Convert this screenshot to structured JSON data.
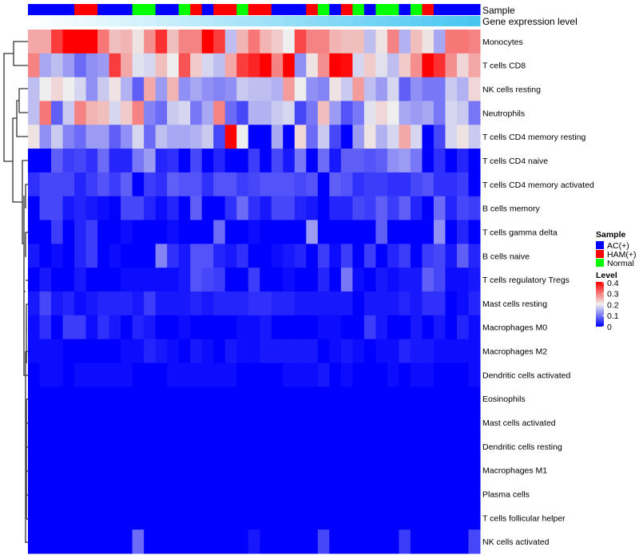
{
  "chart_data": {
    "type": "heatmap",
    "title": "",
    "annotations": {
      "sample_label": "Sample",
      "gene_label": "Gene expression level",
      "sample": [
        "AC(+)",
        "AC(+)",
        "AC(+)",
        "AC(+)",
        "HAM(+)",
        "HAM(+)",
        "AC(+)",
        "AC(+)",
        "AC(+)",
        "Normal",
        "Normal",
        "AC(+)",
        "AC(+)",
        "Normal",
        "HAM(+)",
        "AC(+)",
        "HAM(+)",
        "HAM(+)",
        "Normal",
        "HAM(+)",
        "HAM(+)",
        "AC(+)",
        "AC(+)",
        "AC(+)",
        "HAM(+)",
        "Normal",
        "AC(+)",
        "HAM(+)",
        "Normal",
        "AC(+)",
        "Normal",
        "Normal",
        "AC(+)",
        "Normal",
        "HAM(+)",
        "AC(+)",
        "AC(+)",
        "AC(+)",
        "AC(+)"
      ],
      "gene_expression_rank": [
        0,
        1,
        2,
        3,
        4,
        5,
        6,
        7,
        8,
        9,
        10,
        11,
        12,
        13,
        14,
        15,
        16,
        17,
        18,
        19,
        20,
        21,
        22,
        23,
        24,
        25,
        26,
        27,
        28,
        29,
        30,
        31,
        32,
        33,
        34,
        35,
        36,
        37,
        38
      ]
    },
    "rows": [
      "Monocytes",
      "T cells CD8",
      "NK cells resting",
      "Neutrophils",
      "T cells CD4 memory resting",
      "T cells CD4 naive",
      "T cells CD4 memory activated",
      "B cells memory",
      "T cells gamma delta",
      "B cells naive",
      "T cells regulatory  Tregs",
      "Mast cells resting",
      "Macrophages M0",
      "Macrophages M2",
      "Dendritic cells activated",
      "Eosinophils",
      "Mast cells activated",
      "Dendritic cells resting",
      "Macrophages M1",
      "Plasma cells",
      "T cells follicular helper",
      "NK cells activated"
    ],
    "values": [
      [
        0.26,
        0.26,
        0.35,
        0.4,
        0.4,
        0.4,
        0.3,
        0.24,
        0.25,
        0.21,
        0.28,
        0.36,
        0.24,
        0.29,
        0.29,
        0.4,
        0.35,
        0.16,
        0.25,
        0.3,
        0.25,
        0.23,
        0.2,
        0.34,
        0.29,
        0.29,
        0.25,
        0.24,
        0.24,
        0.16,
        0.21,
        0.29,
        0.15,
        0.24,
        0.21,
        0.14,
        0.3,
        0.3,
        0.29
      ],
      [
        0.29,
        0.14,
        0.16,
        0.13,
        0.09,
        0.12,
        0.13,
        0.35,
        0.26,
        0.19,
        0.18,
        0.24,
        0.2,
        0.33,
        0.23,
        0.18,
        0.16,
        0.26,
        0.35,
        0.37,
        0.4,
        0.29,
        0.4,
        0.12,
        0.21,
        0.28,
        0.4,
        0.39,
        0.18,
        0.23,
        0.19,
        0.16,
        0.23,
        0.28,
        0.4,
        0.36,
        0.28,
        0.22,
        0.26
      ],
      [
        0.16,
        0.2,
        0.22,
        0.2,
        0.18,
        0.12,
        0.17,
        0.21,
        0.15,
        0.08,
        0.26,
        0.13,
        0.25,
        0.12,
        0.14,
        0.12,
        0.11,
        0.12,
        0.17,
        0.16,
        0.16,
        0.15,
        0.27,
        0.2,
        0.12,
        0.11,
        0.21,
        0.17,
        0.27,
        0.16,
        0.13,
        0.18,
        0.08,
        0.12,
        0.1,
        0.1,
        0.17,
        0.15,
        0.22
      ],
      [
        0.16,
        0.3,
        0.08,
        0.17,
        0.29,
        0.25,
        0.24,
        0.18,
        0.23,
        0.29,
        0.11,
        0.09,
        0.17,
        0.18,
        0.1,
        0.14,
        0.29,
        0.09,
        0.06,
        0.15,
        0.15,
        0.17,
        0.18,
        0.06,
        0.1,
        0.24,
        0.13,
        0.07,
        0.1,
        0.19,
        0.22,
        0.2,
        0.14,
        0.13,
        0.14,
        0.1,
        0.18,
        0.17,
        0.1
      ],
      [
        0.21,
        0.12,
        0.17,
        0.11,
        0.09,
        0.13,
        0.13,
        0.08,
        0.12,
        0.18,
        0.09,
        0.16,
        0.14,
        0.14,
        0.15,
        0.17,
        0.06,
        0.4,
        0.2,
        0,
        0,
        0.14,
        0,
        0.22,
        0.09,
        0.17,
        0.06,
        0,
        0.13,
        0.21,
        0.15,
        0.18,
        0.26,
        0.18,
        0,
        0.06,
        0.18,
        0.21,
        0.17
      ],
      [
        0,
        0,
        0.08,
        0.05,
        0.06,
        0.04,
        0.09,
        0.03,
        0.03,
        0.1,
        0.13,
        0.03,
        0.04,
        0,
        0.06,
        0,
        0.03,
        0,
        0,
        0.05,
        0,
        0.06,
        0.02,
        0.1,
        0,
        0.09,
        0.02,
        0.08,
        0.08,
        0.07,
        0.08,
        0.12,
        0.13,
        0.1,
        0,
        0.04,
        0,
        0.03,
        0
      ],
      [
        0.04,
        0.06,
        0.06,
        0.06,
        0.03,
        0.05,
        0.07,
        0.05,
        0.08,
        0,
        0.05,
        0.04,
        0.08,
        0.07,
        0.07,
        0.04,
        0.07,
        0.07,
        0.05,
        0.06,
        0.07,
        0.07,
        0.07,
        0.06,
        0.07,
        0,
        0.08,
        0.07,
        0.04,
        0.05,
        0.05,
        0.04,
        0.04,
        0.06,
        0.07,
        0.04,
        0.04,
        0.05,
        0
      ],
      [
        0,
        0.06,
        0.06,
        0.02,
        0.03,
        0.02,
        0.01,
        0,
        0.06,
        0.06,
        0.03,
        0.01,
        0.03,
        0,
        0.08,
        0,
        0,
        0.04,
        0.09,
        0.04,
        0.02,
        0.06,
        0.06,
        0.03,
        0.02,
        0,
        0.03,
        0.03,
        0.06,
        0.05,
        0.08,
        0.05,
        0.08,
        0.03,
        0,
        0.09,
        0.03,
        0.06,
        0.05
      ],
      [
        0,
        0,
        0.05,
        0,
        0.03,
        0.05,
        0,
        0,
        0.01,
        0,
        0,
        0,
        0.01,
        0,
        0,
        0,
        0.09,
        0,
        0,
        0.01,
        0,
        0,
        0,
        0,
        0.13,
        0,
        0,
        0,
        0,
        0,
        0.08,
        0,
        0,
        0,
        0,
        0.12,
        0,
        0.03,
        0
      ],
      [
        0.02,
        0,
        0.01,
        0,
        0.03,
        0.05,
        0,
        0.01,
        0,
        0,
        0,
        0.11,
        0.04,
        0.02,
        0.07,
        0.07,
        0.03,
        0.02,
        0.04,
        0,
        0,
        0.01,
        0.02,
        0.03,
        0,
        0.05,
        0.01,
        0.05,
        0,
        0.05,
        0,
        0.03,
        0.05,
        0,
        0.05,
        0.06,
        0.02,
        0.08,
        0.03
      ],
      [
        0,
        0.02,
        0,
        0,
        0.02,
        0,
        0,
        0,
        0.01,
        0.01,
        0.01,
        0.01,
        0.01,
        0.02,
        0.07,
        0.06,
        0.05,
        0,
        0,
        0.05,
        0,
        0,
        0.01,
        0,
        0,
        0.03,
        0,
        0.1,
        0.01,
        0,
        0.02,
        0.01,
        0.02,
        0.02,
        0.08,
        0.06,
        0.01,
        0.01,
        0.02
      ],
      [
        0.02,
        0.06,
        0.02,
        0.03,
        0.01,
        0.02,
        0.03,
        0.03,
        0.03,
        0.02,
        0.05,
        0.02,
        0.02,
        0.02,
        0.03,
        0.02,
        0.03,
        0.03,
        0.03,
        0.04,
        0.04,
        0.03,
        0.03,
        0.02,
        0.02,
        0.02,
        0.02,
        0.02,
        0,
        0.02,
        0.02,
        0.02,
        0.03,
        0.02,
        0.04,
        0.04,
        0,
        0.01,
        0.03
      ],
      [
        0.01,
        0.04,
        0,
        0.05,
        0.05,
        0.01,
        0.04,
        0.02,
        0,
        0.03,
        0.02,
        0,
        0,
        0.01,
        0,
        0,
        0,
        0,
        0.01,
        0.01,
        0.02,
        0,
        0,
        0,
        0,
        0.01,
        0.01,
        0,
        0,
        0.05,
        0.02,
        0,
        0,
        0.02,
        0,
        0.02,
        0,
        0.03,
        0.01
      ],
      [
        0.01,
        0.01,
        0.01,
        0,
        0,
        0,
        0,
        0,
        0.01,
        0.01,
        0.03,
        0.02,
        0.01,
        0,
        0.02,
        0.01,
        0,
        0.02,
        0.01,
        0.01,
        0.02,
        0.02,
        0.02,
        0.02,
        0.02,
        0,
        0.01,
        0.02,
        0.01,
        0,
        0.01,
        0.01,
        0.03,
        0.02,
        0.02,
        0.01,
        0.01,
        0.01,
        0.01
      ],
      [
        0,
        0.01,
        0.01,
        0,
        0.01,
        0.01,
        0.01,
        0.01,
        0.01,
        0,
        0,
        0,
        0.01,
        0.01,
        0.01,
        0.01,
        0.01,
        0.01,
        0,
        0,
        0,
        0,
        0.01,
        0.01,
        0.01,
        0.02,
        0,
        0.01,
        0,
        0,
        0,
        0.01,
        0,
        0.01,
        0.01,
        0,
        0,
        0,
        0.01
      ],
      [
        0,
        0,
        0,
        0,
        0,
        0,
        0,
        0,
        0,
        0,
        0,
        0,
        0,
        0,
        0,
        0,
        0,
        0,
        0,
        0,
        0,
        0,
        0,
        0,
        0,
        0,
        0,
        0,
        0,
        0,
        0,
        0,
        0,
        0,
        0,
        0,
        0,
        0,
        0
      ],
      [
        0,
        0,
        0,
        0,
        0,
        0,
        0,
        0,
        0,
        0,
        0,
        0,
        0,
        0,
        0,
        0,
        0,
        0,
        0,
        0,
        0,
        0,
        0,
        0,
        0,
        0,
        0,
        0,
        0,
        0,
        0,
        0,
        0,
        0,
        0,
        0,
        0,
        0,
        0
      ],
      [
        0,
        0,
        0,
        0,
        0,
        0,
        0,
        0,
        0,
        0,
        0,
        0,
        0,
        0,
        0,
        0,
        0,
        0,
        0,
        0,
        0,
        0,
        0,
        0,
        0,
        0,
        0,
        0,
        0,
        0,
        0,
        0,
        0,
        0,
        0,
        0,
        0,
        0,
        0
      ],
      [
        0,
        0,
        0,
        0,
        0,
        0,
        0,
        0,
        0,
        0,
        0,
        0,
        0,
        0,
        0,
        0,
        0,
        0,
        0,
        0,
        0,
        0,
        0,
        0,
        0,
        0,
        0,
        0,
        0,
        0,
        0,
        0,
        0,
        0,
        0,
        0,
        0,
        0,
        0
      ],
      [
        0,
        0,
        0,
        0,
        0,
        0,
        0,
        0,
        0,
        0,
        0,
        0,
        0,
        0,
        0,
        0,
        0,
        0,
        0,
        0,
        0,
        0,
        0,
        0,
        0,
        0,
        0,
        0,
        0,
        0,
        0,
        0,
        0,
        0,
        0,
        0,
        0,
        0,
        0
      ],
      [
        0,
        0,
        0,
        0,
        0,
        0,
        0,
        0,
        0,
        0,
        0,
        0,
        0,
        0,
        0,
        0,
        0,
        0,
        0,
        0,
        0,
        0,
        0,
        0,
        0,
        0,
        0,
        0,
        0,
        0,
        0,
        0,
        0,
        0,
        0,
        0,
        0,
        0,
        0
      ],
      [
        0,
        0,
        0,
        0,
        0,
        0,
        0,
        0,
        0,
        0.09,
        0,
        0,
        0,
        0,
        0,
        0,
        0,
        0,
        0,
        0.02,
        0,
        0,
        0,
        0,
        0,
        0.06,
        0,
        0,
        0,
        0,
        0,
        0,
        0.05,
        0,
        0,
        0,
        0,
        0,
        0.06
      ]
    ],
    "color_scale": {
      "min": 0,
      "mid": 0.2,
      "max": 0.4,
      "low": "#0000ff",
      "midColor": "#eeeeee",
      "high": "#ff0000"
    },
    "gene_colors": {
      "low": "#ffffff",
      "high": "#48c6f2"
    },
    "legend": {
      "placement": "right",
      "sample_title": "Sample",
      "sample_items": [
        {
          "label": "AC(+)",
          "color": "#0000ff"
        },
        {
          "label": "HAM(+)",
          "color": "#ff0000"
        },
        {
          "label": "Normal",
          "color": "#00ff00"
        }
      ],
      "level_title": "Level",
      "level_ticks": [
        "0.4",
        "0.3",
        "0.2",
        "0.1",
        "0"
      ]
    }
  }
}
